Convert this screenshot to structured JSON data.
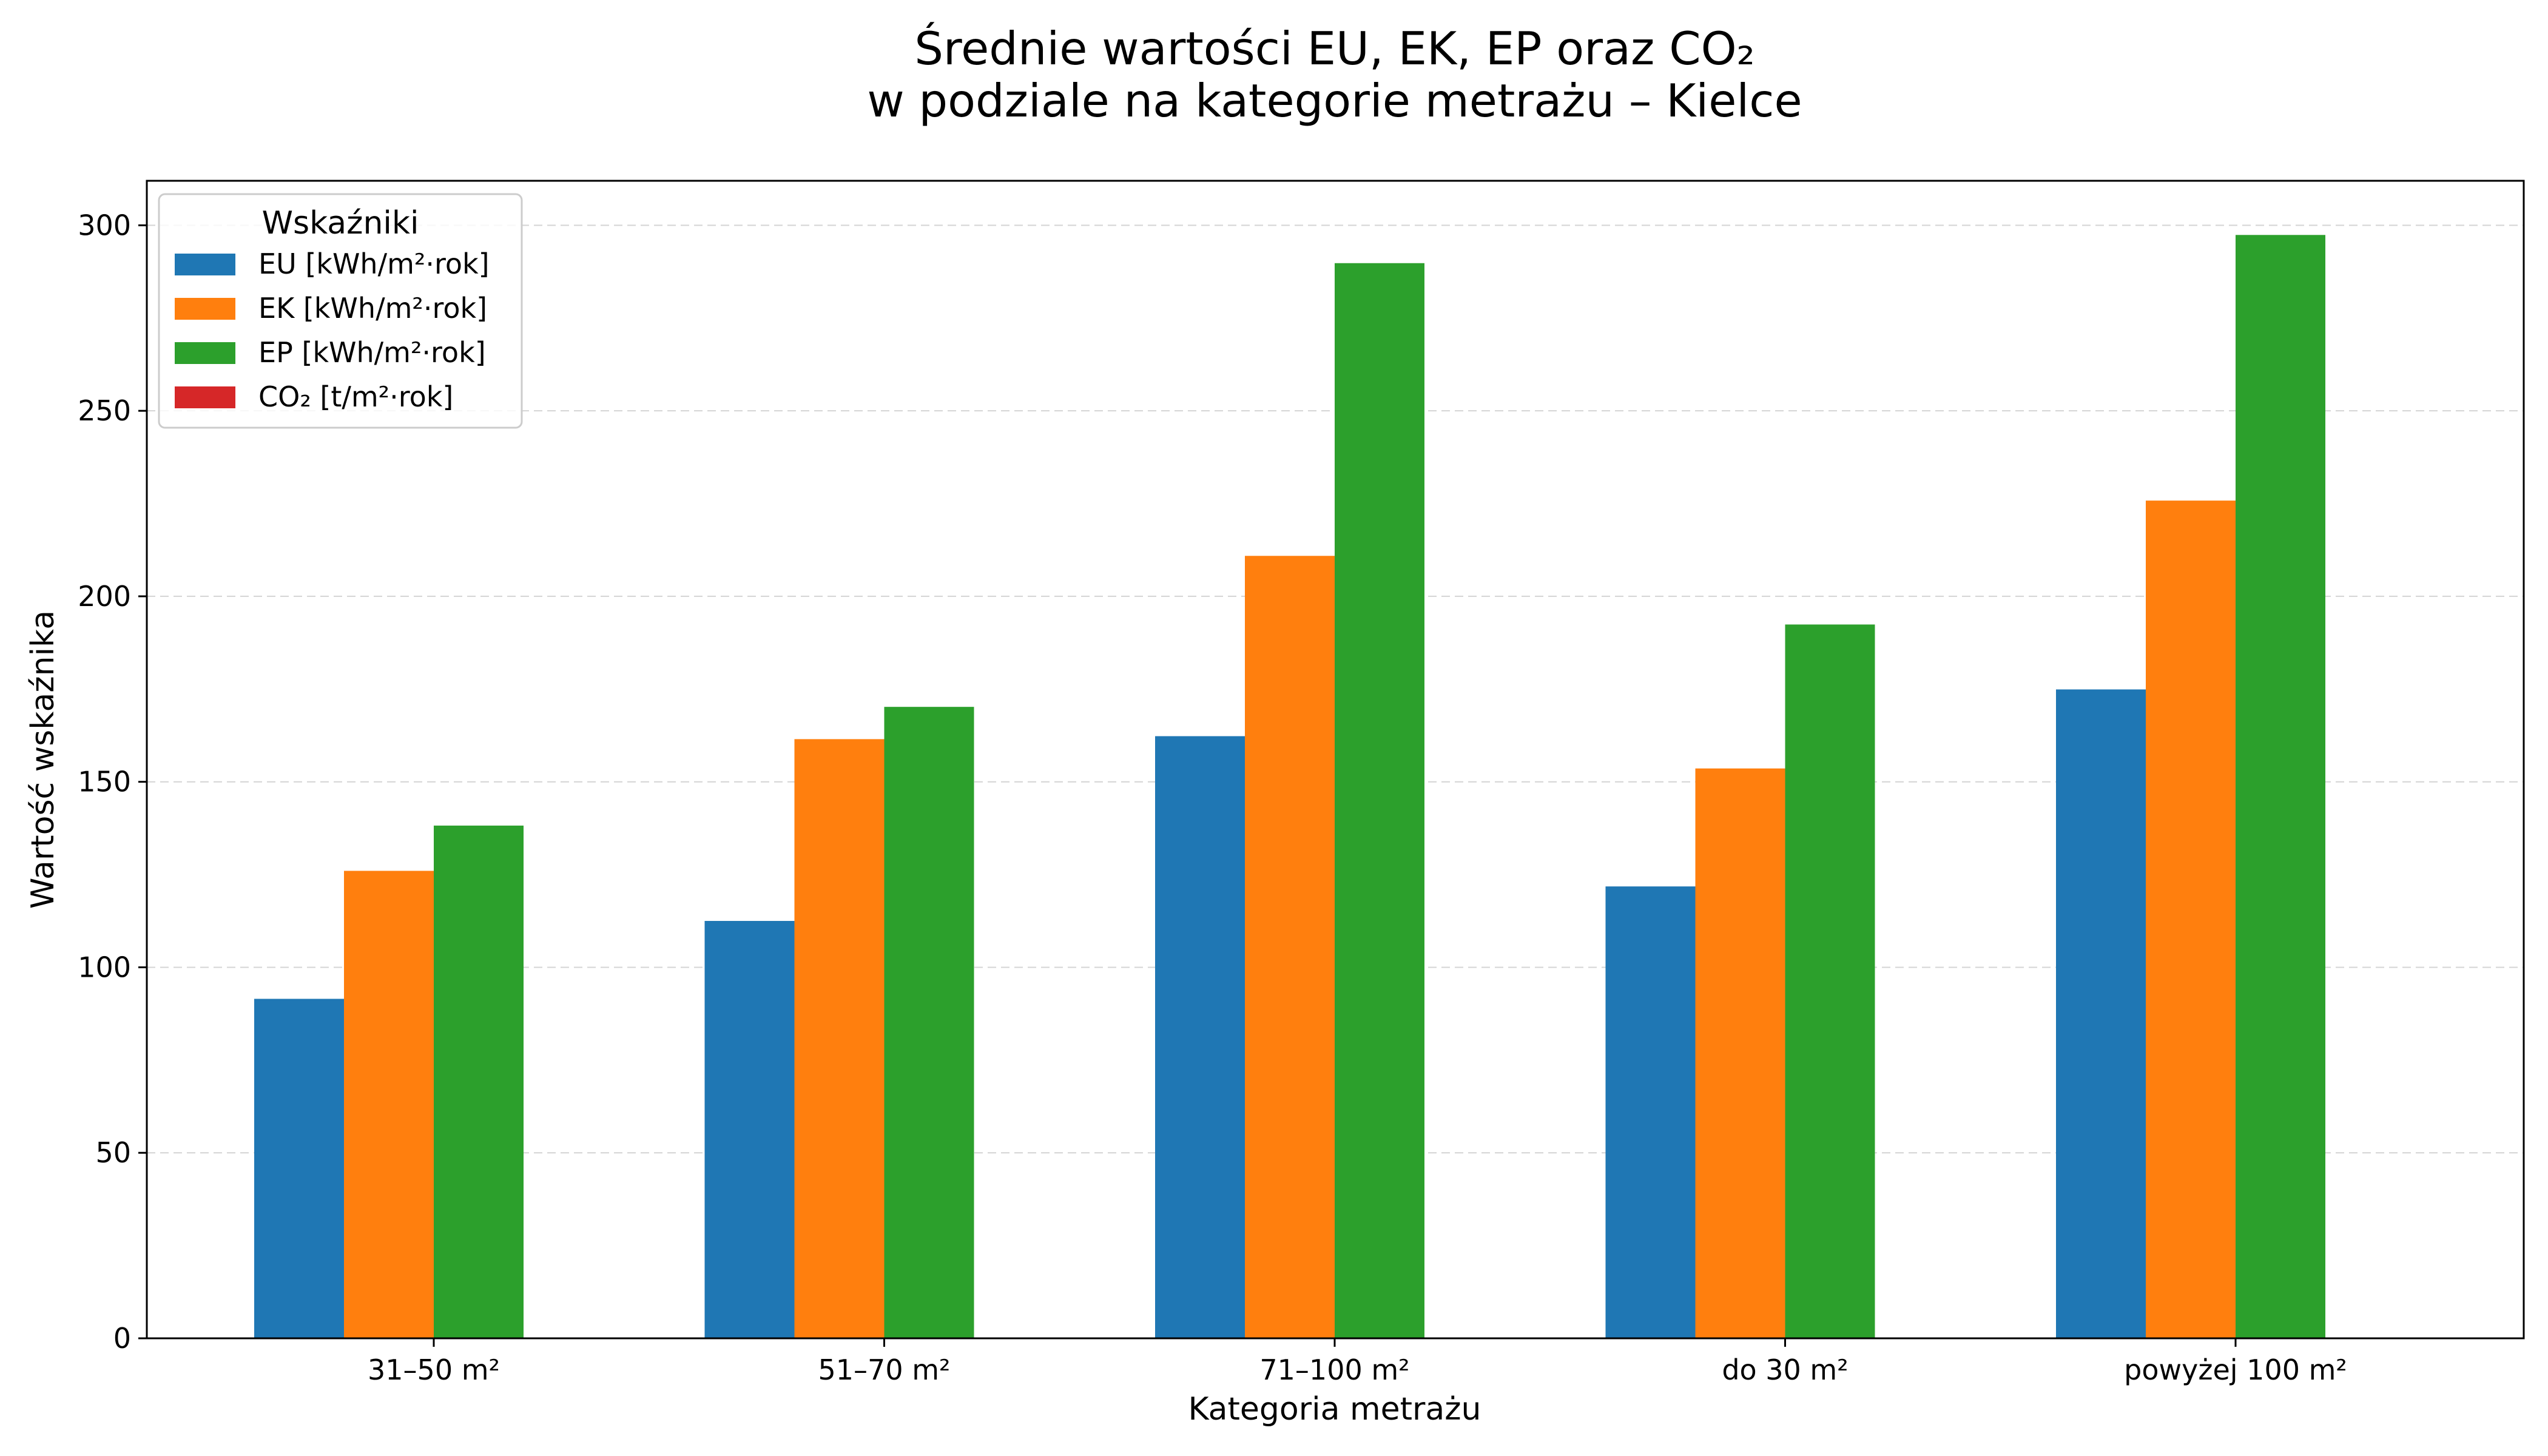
{
  "chart_data": {
    "type": "bar",
    "title_line1": "Średnie wartości EU, EK, EP oraz CO₂",
    "title_line2": "w podziale na kategorie metrażu – Kielce",
    "xlabel": "Kategoria metrażu",
    "ylabel": "Wartość wskaźnika",
    "ylim": [
      0,
      312
    ],
    "yticks": [
      "0",
      "50",
      "100",
      "150",
      "200",
      "250",
      "300"
    ],
    "categories": [
      "31–50 m²",
      "51–70 m²",
      "71–100 m²",
      "do 30 m²",
      "powyżej 100 m²"
    ],
    "legend_title": "Wskaźniki",
    "legend_position": "top-left",
    "grid": "y-dashed",
    "series": [
      {
        "name": "EU [kWh/m²·rok]",
        "color": "#1f77b4",
        "values": [
          91.5,
          112.5,
          162.3,
          121.8,
          174.9
        ]
      },
      {
        "name": "EK [kWh/m²·rok]",
        "color": "#ff7f0e",
        "values": [
          126.0,
          161.5,
          210.9,
          153.6,
          225.8
        ]
      },
      {
        "name": "EP [kWh/m²·rok]",
        "color": "#2ca02c",
        "values": [
          138.2,
          170.2,
          289.8,
          192.4,
          297.4
        ]
      },
      {
        "name": "CO₂ [t/m²·rok]",
        "color": "#d62728",
        "values": [
          0.05,
          0.06,
          0.09,
          0.07,
          0.1
        ]
      }
    ]
  }
}
